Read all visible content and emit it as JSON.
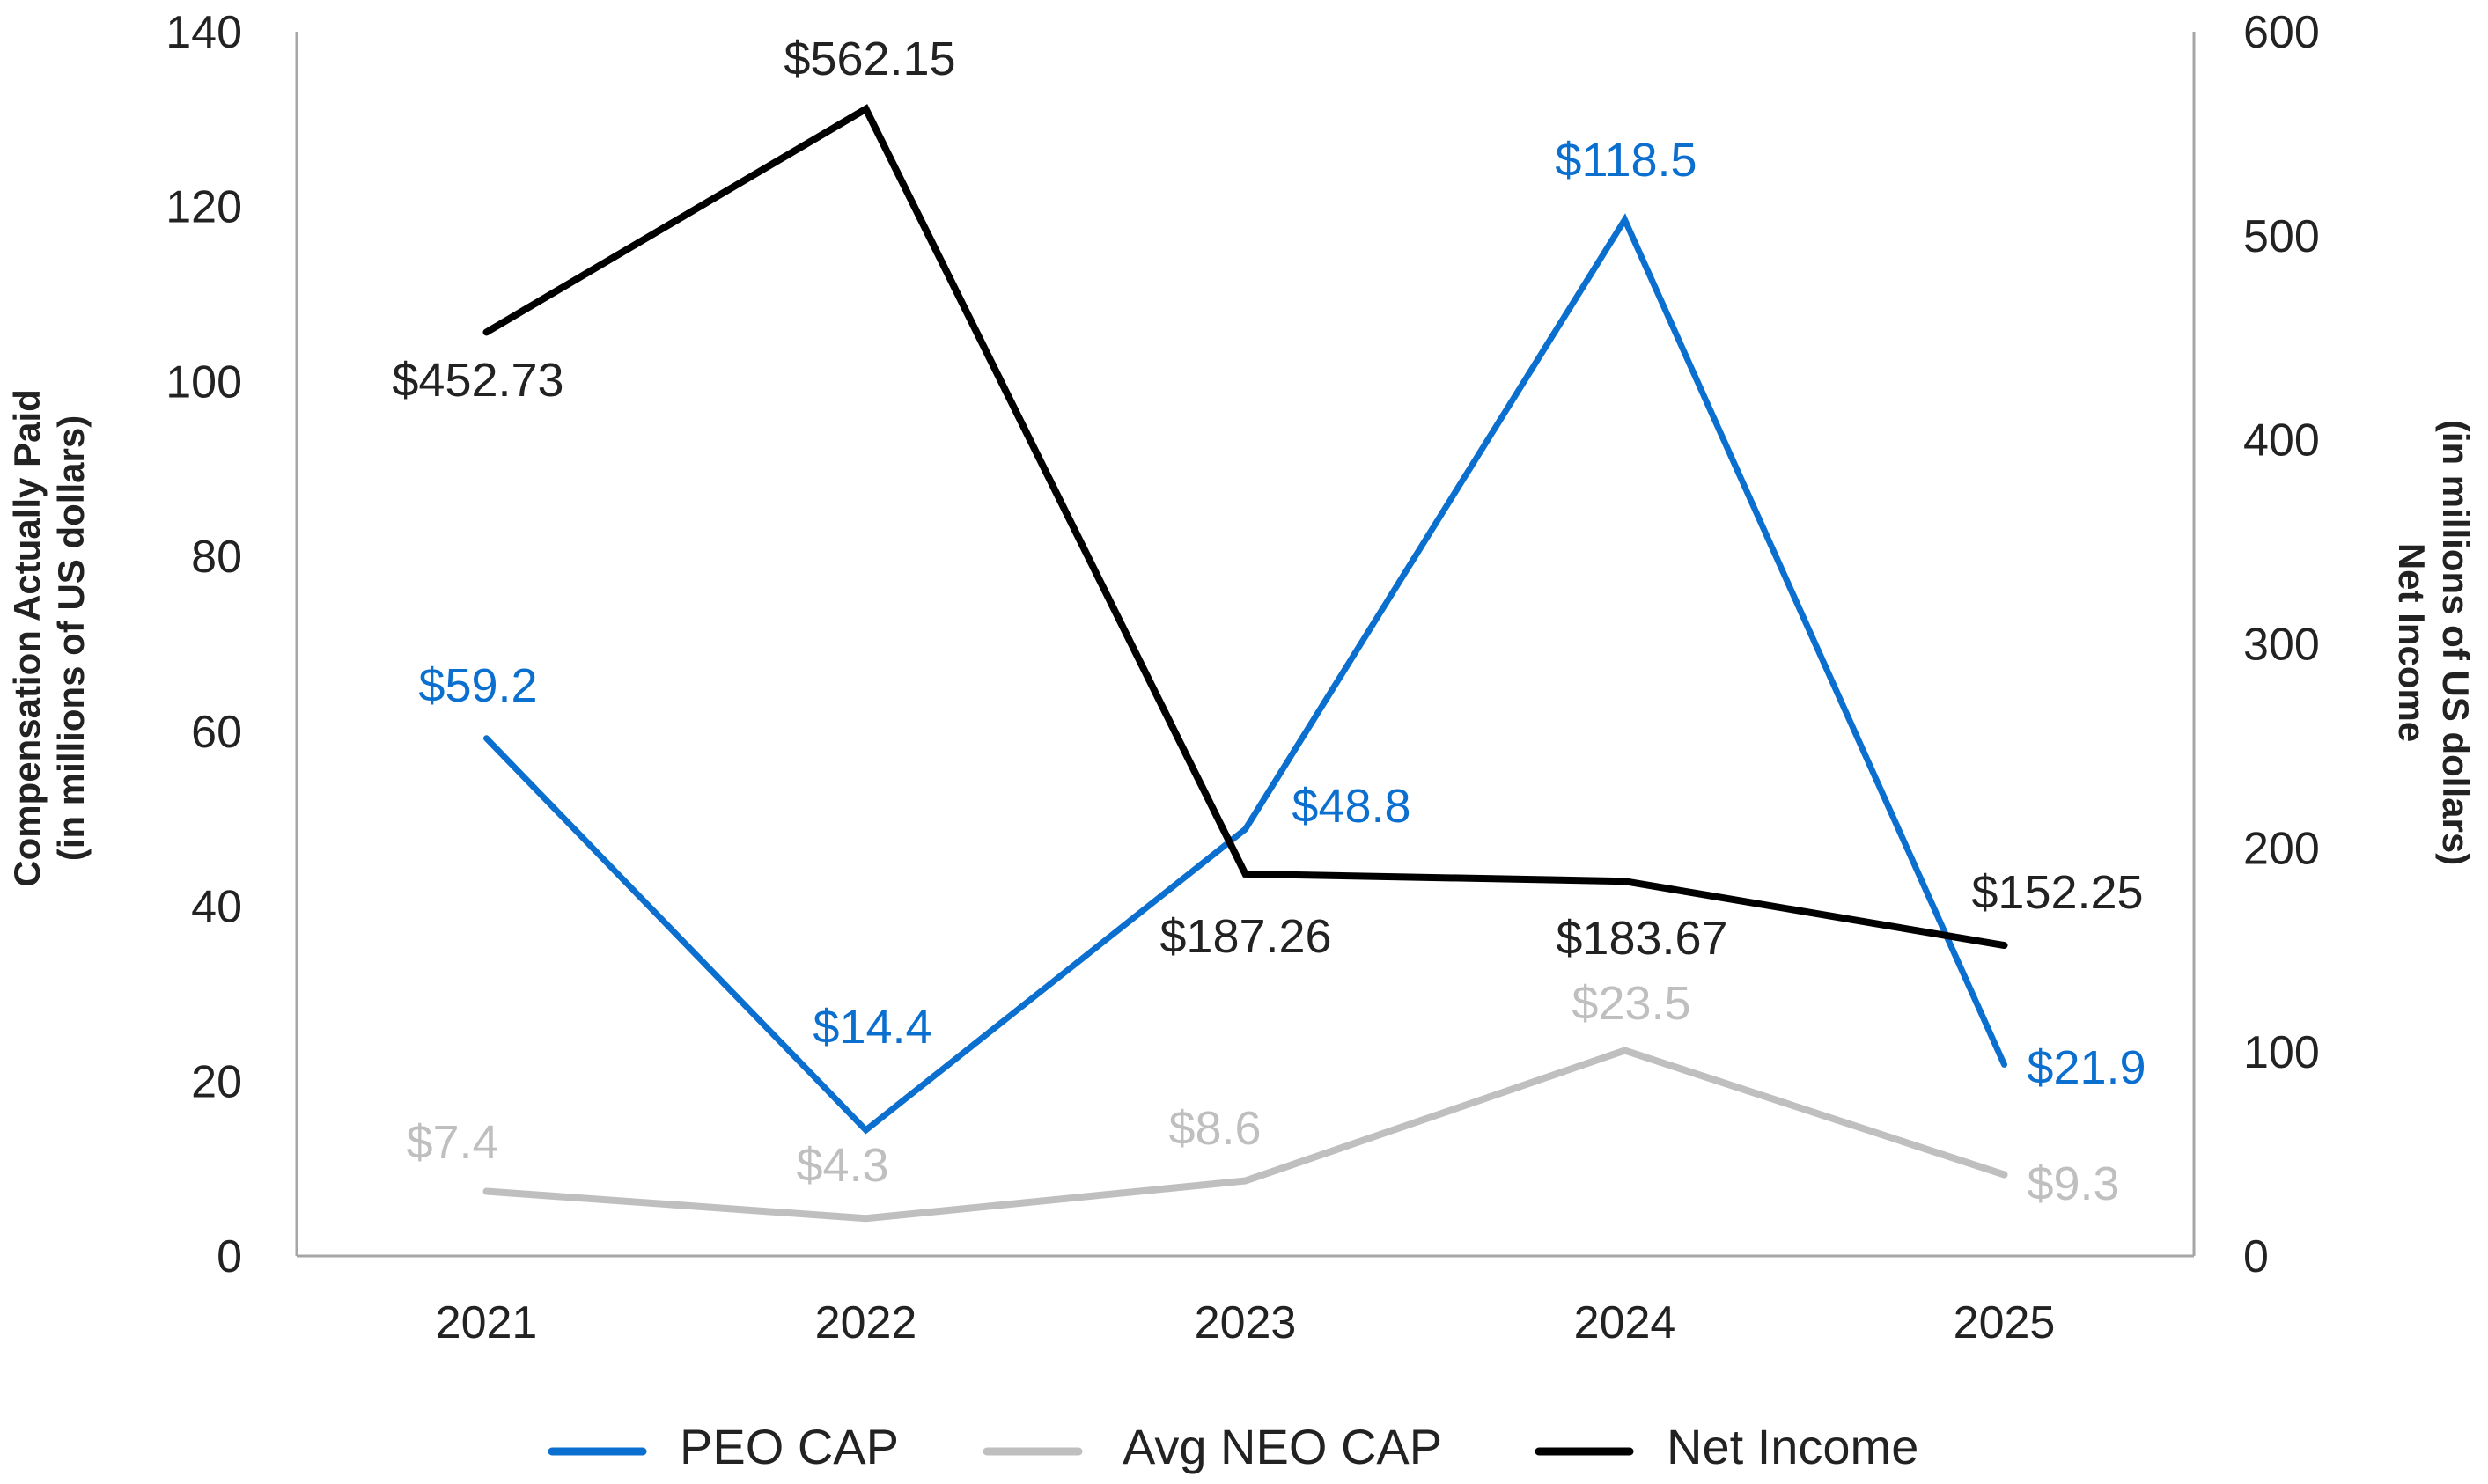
{
  "chart_data": {
    "type": "line",
    "categories": [
      "2021",
      "2022",
      "2023",
      "2024",
      "2025"
    ],
    "y_left": {
      "label_line1": "Compensation Actually Paid",
      "label_line2": "(in millions of US dollars)",
      "range": [
        0,
        140
      ],
      "ticks": [
        "0",
        "20",
        "40",
        "60",
        "80",
        "100",
        "120",
        "140"
      ]
    },
    "y_right": {
      "label_line1": "Net Income",
      "label_line2": "(in millions of US dollars)",
      "range": [
        0,
        600
      ],
      "ticks": [
        "0",
        "100",
        "200",
        "300",
        "400",
        "500",
        "600"
      ]
    },
    "grid": false,
    "legend_position": "bottom",
    "series": [
      {
        "name": "PEO CAP",
        "axis": "left",
        "color": "#0b6fcf",
        "values": [
          59.2,
          14.4,
          48.8,
          118.5,
          21.9
        ],
        "labels": [
          "$59.2",
          "$14.4",
          "$48.8",
          "$118.5",
          "$21.9"
        ]
      },
      {
        "name": "Avg NEO CAP",
        "axis": "left",
        "color": "#bfbfbf",
        "values": [
          7.4,
          4.3,
          8.6,
          23.5,
          9.3
        ],
        "labels": [
          "$7.4",
          "$4.3",
          "$8.6",
          "$23.5",
          "$9.3"
        ]
      },
      {
        "name": "Net Income",
        "axis": "right",
        "color": "#000000",
        "values": [
          452.73,
          562.15,
          187.26,
          183.67,
          152.25
        ],
        "labels": [
          "$452.73",
          "$562.15",
          "$187.26",
          "$183.67",
          "$152.25"
        ]
      }
    ]
  }
}
